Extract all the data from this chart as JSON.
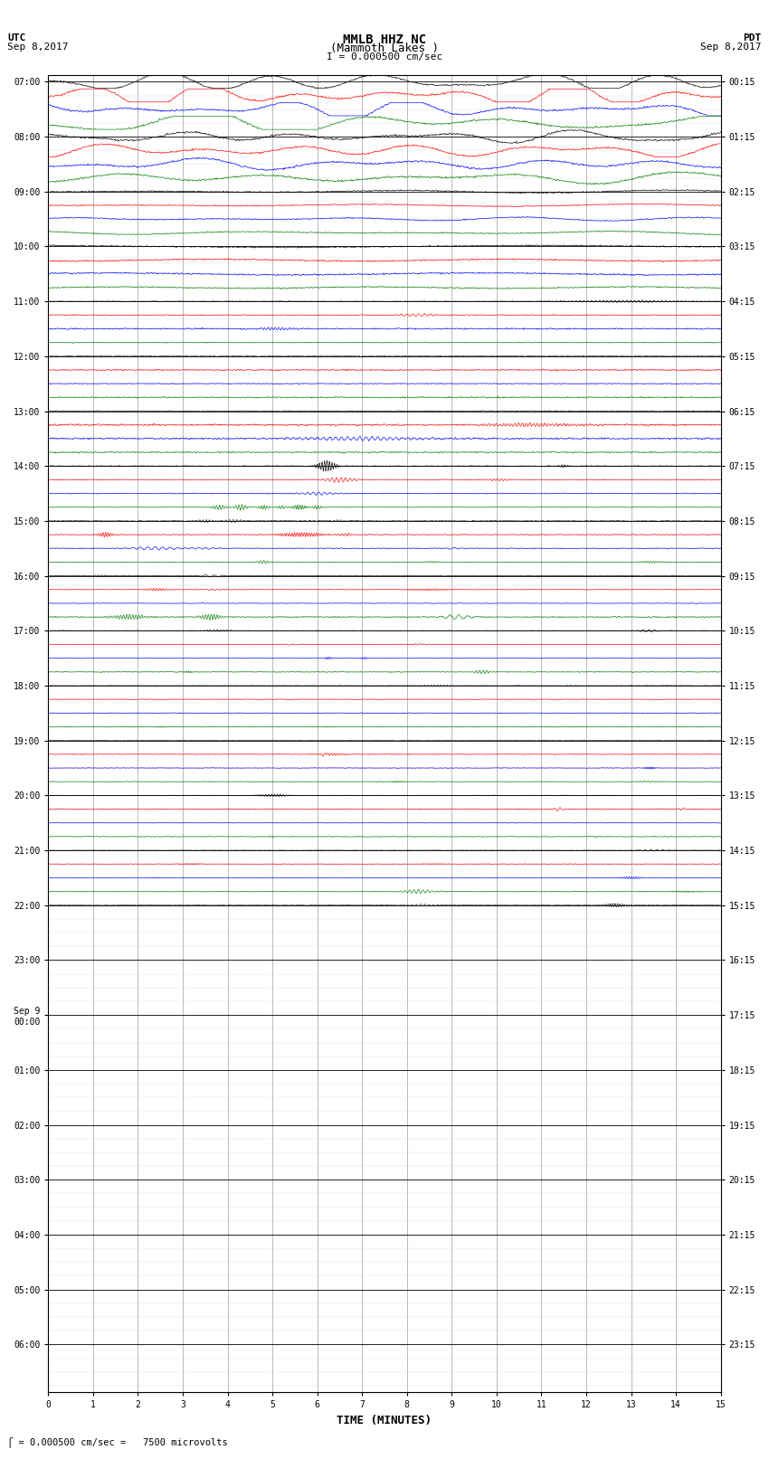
{
  "title_line1": "MMLB HHZ NC",
  "title_line2": "(Mammoth Lakes )",
  "title_line3": "I = 0.000500 cm/sec",
  "left_label_top": "UTC",
  "left_label_date": "Sep 8,2017",
  "right_label_top": "PDT",
  "right_label_date": "Sep 8,2017",
  "xlabel": "TIME (MINUTES)",
  "bottom_note": "= 0.000500 cm/sec =   7500 microvolts",
  "background_color": "white",
  "grid_color": "#888888",
  "title_fontsize": 9,
  "label_fontsize": 8,
  "tick_fontsize": 7,
  "xmin": 0,
  "xmax": 15,
  "xticks": [
    0,
    1,
    2,
    3,
    4,
    5,
    6,
    7,
    8,
    9,
    10,
    11,
    12,
    13,
    14,
    15
  ],
  "colors_cycle": [
    "black",
    "red",
    "blue",
    "green"
  ],
  "n_rows": 96,
  "active_rows": 61,
  "utc_hour_labels": [
    "07:00",
    "08:00",
    "09:00",
    "10:00",
    "11:00",
    "12:00",
    "13:00",
    "14:00",
    "15:00",
    "16:00",
    "17:00",
    "18:00",
    "19:00",
    "20:00",
    "21:00",
    "22:00",
    "23:00",
    "Sep 9\n00:00",
    "01:00",
    "02:00",
    "03:00",
    "04:00",
    "05:00",
    "06:00"
  ],
  "pdt_hour_labels": [
    "00:15",
    "01:15",
    "02:15",
    "03:15",
    "04:15",
    "05:15",
    "06:15",
    "07:15",
    "08:15",
    "09:15",
    "10:15",
    "11:15",
    "12:15",
    "13:15",
    "14:15",
    "15:15",
    "16:15",
    "17:15",
    "18:15",
    "19:15",
    "20:15",
    "21:15",
    "22:15",
    "23:15"
  ]
}
